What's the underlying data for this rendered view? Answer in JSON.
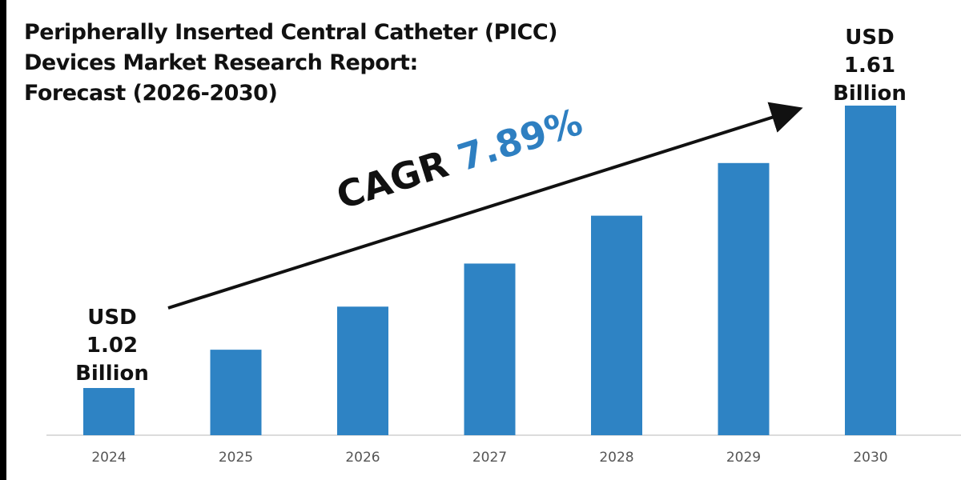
{
  "title_lines": [
    "Peripherally Inserted Central Catheter (PICC)",
    "Devices Market Research Report:",
    "Forecast (2026-2030)"
  ],
  "cagr": {
    "label": "CAGR",
    "value": "7.89%"
  },
  "start_label": {
    "line1": "USD",
    "line2": "1.02",
    "line3": "Billion"
  },
  "end_label": {
    "line1": "USD",
    "line2": "1.61",
    "line3": "Billion"
  },
  "chart_data": {
    "type": "bar",
    "title": "Peripherally Inserted Central Catheter (PICC) Devices Market Research Report: Forecast (2026-2030)",
    "categories": [
      "2024",
      "2025",
      "2026",
      "2027",
      "2028",
      "2029",
      "2030"
    ],
    "values": [
      1.02,
      1.1,
      1.19,
      1.28,
      1.38,
      1.49,
      1.61
    ],
    "unit": "USD Billion",
    "xlabel": "",
    "ylabel": "",
    "grid": false,
    "bar_color": "#2e83c4",
    "annotation": "CAGR 7.89%"
  }
}
